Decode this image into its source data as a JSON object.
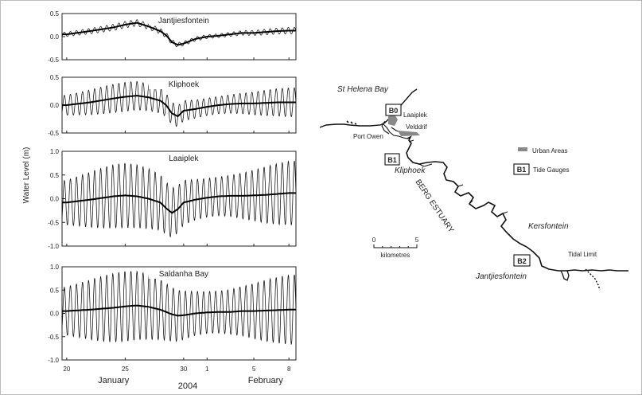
{
  "chart_data": [
    {
      "type": "line",
      "title": "Jantjiesfontein",
      "ylim": [
        -0.5,
        0.5
      ],
      "yticks": [
        "0.5",
        "0.0",
        "-0.5"
      ],
      "tide_amplitude": 0.07,
      "series": [
        {
          "role": "observed"
        },
        {
          "role": "residual",
          "days": [
            20,
            22,
            24,
            25,
            26,
            27,
            28,
            28.5,
            29,
            29.5,
            30,
            31,
            32,
            33,
            34,
            35,
            36,
            37,
            38,
            39
          ],
          "values": [
            0.05,
            0.12,
            0.2,
            0.26,
            0.3,
            0.22,
            0.12,
            0.03,
            -0.12,
            -0.18,
            -0.15,
            -0.05,
            0.0,
            0.02,
            0.05,
            0.08,
            0.08,
            0.1,
            0.12,
            0.13
          ]
        }
      ]
    },
    {
      "type": "line",
      "title": "Kliphoek",
      "ylim": [
        -0.5,
        0.5
      ],
      "yticks": [
        "0.5",
        "0.0",
        "-0.5"
      ],
      "tide_amplitude": 0.26,
      "series": [
        {
          "role": "observed"
        },
        {
          "role": "residual",
          "days": [
            20,
            22,
            24,
            25,
            26,
            27,
            28,
            28.5,
            29,
            29.5,
            30,
            31,
            32,
            33,
            34,
            35,
            36,
            37,
            38,
            39
          ],
          "values": [
            0.0,
            0.05,
            0.12,
            0.15,
            0.17,
            0.14,
            0.08,
            0.0,
            -0.15,
            -0.2,
            -0.1,
            -0.07,
            -0.03,
            0.0,
            0.02,
            0.03,
            0.03,
            0.04,
            0.05,
            0.05
          ]
        }
      ]
    },
    {
      "type": "line",
      "title": "Laaiplek",
      "ylim": [
        -1.0,
        1.0
      ],
      "yticks": [
        "1.0",
        "0.5",
        "0.0",
        "-0.5",
        "-1.0"
      ],
      "tide_amplitude": 0.68,
      "series": [
        {
          "role": "observed"
        },
        {
          "role": "residual",
          "days": [
            20,
            22,
            24,
            25,
            26,
            27,
            28,
            28.5,
            29,
            29.5,
            30,
            31,
            32,
            33,
            34,
            35,
            36,
            37,
            38,
            39
          ],
          "values": [
            -0.08,
            -0.02,
            0.05,
            0.07,
            0.05,
            0.0,
            -0.08,
            -0.2,
            -0.3,
            -0.22,
            -0.08,
            -0.02,
            0.02,
            0.05,
            0.06,
            0.06,
            0.07,
            0.08,
            0.1,
            0.12
          ]
        }
      ]
    },
    {
      "type": "line",
      "title": "Saldanha Bay",
      "ylim": [
        -1.0,
        1.0
      ],
      "yticks": [
        "1.0",
        "0.5",
        "0.0",
        "-0.5",
        "-1.0"
      ],
      "tide_amplitude": 0.75,
      "series": [
        {
          "role": "observed"
        },
        {
          "role": "residual",
          "days": [
            20,
            22,
            24,
            25,
            26,
            27,
            28,
            28.5,
            29,
            29.5,
            30,
            31,
            32,
            33,
            34,
            35,
            36,
            37,
            38,
            39
          ],
          "values": [
            0.05,
            0.08,
            0.12,
            0.15,
            0.17,
            0.14,
            0.08,
            0.03,
            -0.02,
            -0.05,
            -0.04,
            0.0,
            0.02,
            0.03,
            0.03,
            0.05,
            0.05,
            0.06,
            0.07,
            0.08
          ]
        }
      ]
    }
  ],
  "x_axis": {
    "ticks": [
      {
        "day": 20,
        "label": "20"
      },
      {
        "day": 25,
        "label": "25"
      },
      {
        "day": 30,
        "label": "30"
      },
      {
        "day": 32,
        "label": "1"
      },
      {
        "day": 36,
        "label": "5"
      },
      {
        "day": 39,
        "label": "8"
      }
    ],
    "months": [
      {
        "day": 24,
        "label": "January"
      },
      {
        "day": 37,
        "label": "February"
      }
    ],
    "year": "2004",
    "xlim": [
      19.6,
      39.6
    ]
  },
  "ylabel": "Water Level (m)",
  "map": {
    "place_labels": {
      "st_helena_bay": "St Helena Bay",
      "laaiplek": "Laaiplek",
      "velddrif": "Velddrif",
      "port_owen": "Port Owen",
      "kliphoek": "Kliphoek",
      "berg_estuary": "BERG ESTUARY",
      "kersfontein": "Kersfontein",
      "jantjiesfontein": "Jantjiesfontein",
      "tidal_limit": "Tidal Limit"
    },
    "gauges": {
      "b0": "B0",
      "b1": "B1",
      "b2": "B2"
    },
    "legend": {
      "urban_areas": "Urban Areas",
      "tide_gauges_symbol": "B1",
      "tide_gauges": "Tide Gauges"
    },
    "scale_bar": {
      "min": "0",
      "max": "5",
      "unit": "kilometres"
    },
    "urban_color": "#888888"
  }
}
